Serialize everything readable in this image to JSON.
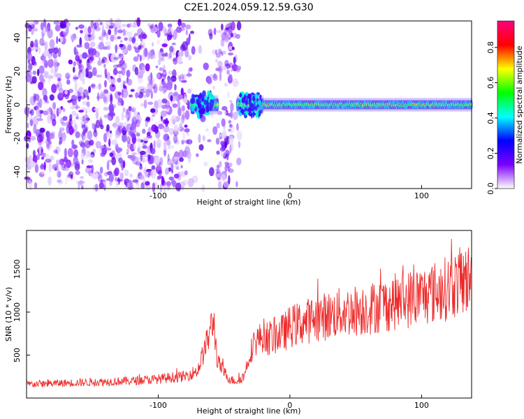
{
  "figure_title": "C2E1.2024.059.12.59.G30",
  "chart_data": [
    {
      "type": "heatmap",
      "title": "",
      "xlabel": "Height of straight line (km)",
      "ylabel": "Frequency (Hz)",
      "xlim": [
        -200,
        138
      ],
      "ylim": [
        -50,
        50
      ],
      "xticks": [
        -100,
        0,
        100
      ],
      "yticks": [
        -40,
        -20,
        0,
        20,
        40
      ],
      "grid": false,
      "colorbar": {
        "label": "Normalized spectral amplitude",
        "range": [
          0,
          0.95
        ],
        "ticks": [
          0.0,
          0.2,
          0.4,
          0.6,
          0.8
        ],
        "colors": [
          "#ffffff",
          "#7b00ff",
          "#0000ff",
          "#00ffff",
          "#00ff00",
          "#ffff00",
          "#ff0000",
          "#ff0080"
        ]
      },
      "regions": [
        {
          "x": [
            -200,
            -75
          ],
          "description_level": 0.15
        },
        {
          "x": [
            -75,
            -62
          ],
          "description_level": 0.3
        },
        {
          "x": [
            -62,
            -55
          ],
          "description_level": 0.45
        },
        {
          "x": [
            -55,
            -38
          ],
          "description_level": 0.15
        },
        {
          "x": [
            -38,
            -20
          ],
          "description_level": 0.4
        },
        {
          "x": [
            -20,
            138
          ],
          "description_level": 0.45
        }
      ]
    },
    {
      "type": "line",
      "title": "",
      "xlabel": "Height of straight line (km)",
      "ylabel": "SNR (10 * v/v)",
      "xlim": [
        -200,
        138
      ],
      "ylim": [
        0,
        1950
      ],
      "xticks": [
        -100,
        0,
        100
      ],
      "yticks": [
        500,
        1000,
        1500
      ],
      "grid": false,
      "series": [
        {
          "color": "#ee2a2a",
          "x": [
            -200,
            -180,
            -160,
            -140,
            -120,
            -100,
            -90,
            -80,
            -70,
            -62,
            -58,
            -55,
            -50,
            -45,
            -40,
            -35,
            -30,
            -25,
            -20,
            -15,
            -10,
            -5,
            0,
            10,
            20,
            30,
            40,
            50,
            60,
            70,
            80,
            90,
            100,
            110,
            120,
            130,
            138
          ],
          "y": [
            160,
            170,
            180,
            190,
            200,
            220,
            240,
            250,
            320,
            700,
            920,
            420,
            300,
            210,
            200,
            250,
            540,
            680,
            720,
            700,
            730,
            760,
            830,
            880,
            930,
            960,
            1000,
            1020,
            1040,
            1080,
            1120,
            1150,
            1190,
            1230,
            1280,
            1360,
            1400
          ]
        }
      ]
    }
  ]
}
